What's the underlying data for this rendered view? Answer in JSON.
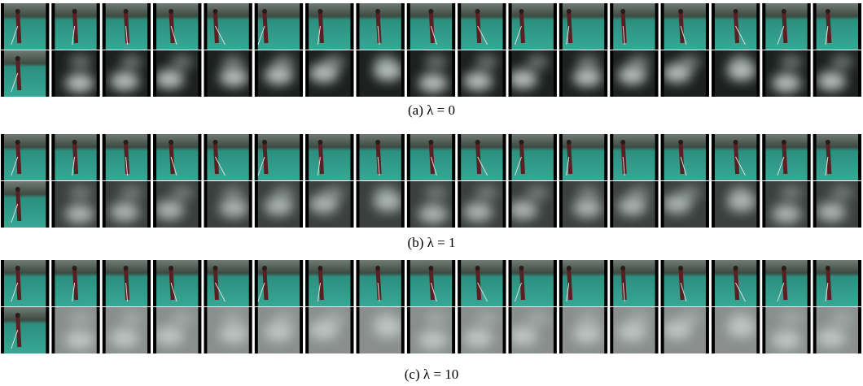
{
  "panels": [
    {
      "caption": "(a) λ = 0"
    },
    {
      "caption": "(b) λ = 1"
    },
    {
      "caption": "(c) λ = 10"
    }
  ]
}
